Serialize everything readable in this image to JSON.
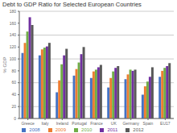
{
  "chart_data": {
    "type": "bar",
    "title": "Debt to GDP Ratio for Selected European Countries",
    "ylabel": "% GDP",
    "categories": [
      "Greece",
      "Italy",
      "Ireland",
      "Portugal",
      "France",
      "UK",
      "Germany",
      "Spain",
      "EU17"
    ],
    "series": [
      {
        "name": "2008",
        "color": "#4472c4",
        "values": [
          110,
          106,
          44,
          72,
          68,
          52,
          66,
          40,
          70
        ]
      },
      {
        "name": "2009",
        "color": "#ed7d31",
        "values": [
          127,
          116,
          64,
          83,
          79,
          68,
          74,
          54,
          80
        ]
      },
      {
        "name": "2010",
        "color": "#70ad47",
        "values": [
          146,
          119,
          91,
          94,
          82,
          79,
          82,
          62,
          85
        ]
      },
      {
        "name": "2011",
        "color": "#7030a0",
        "values": [
          170,
          121,
          106,
          108,
          86,
          85,
          80,
          70,
          88
        ]
      },
      {
        "name": "2012",
        "color": "#595959",
        "values": [
          157,
          127,
          117,
          120,
          90,
          88,
          82,
          86,
          93
        ]
      }
    ],
    "ylim": [
      0,
      180
    ],
    "yticks": [
      0,
      20,
      40,
      60,
      80,
      100,
      120,
      140,
      160,
      180
    ],
    "grid": true,
    "legend": "bottom"
  }
}
